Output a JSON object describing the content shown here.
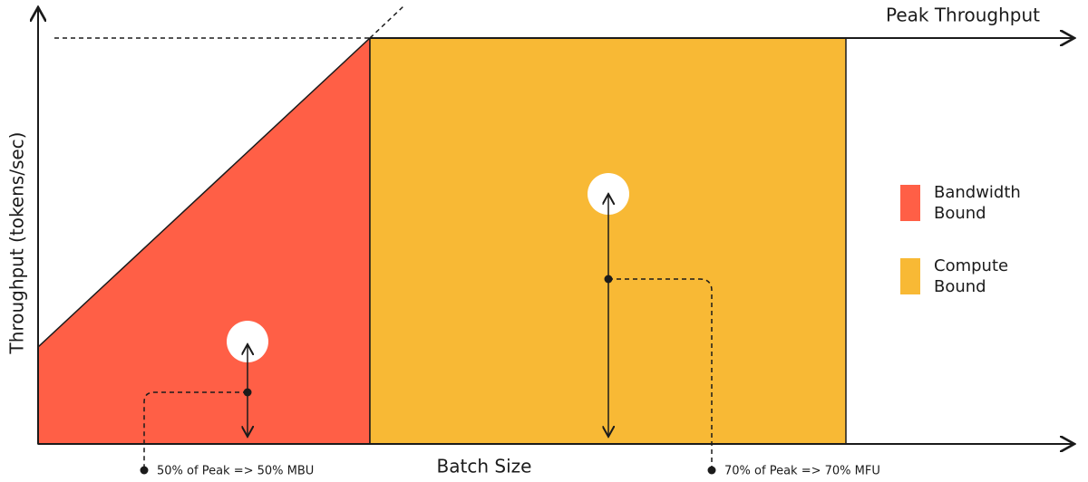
{
  "title": "Peak Throughput",
  "x_axis_label": "Batch Size",
  "y_axis_label": "Throughput (tokens/sec)",
  "legend": [
    "Bandwidth Bound",
    "Compute Bound"
  ],
  "annotations": [
    "50% of Peak => 50% MBU",
    "70% of Peak => 70% MFU"
  ]
}
